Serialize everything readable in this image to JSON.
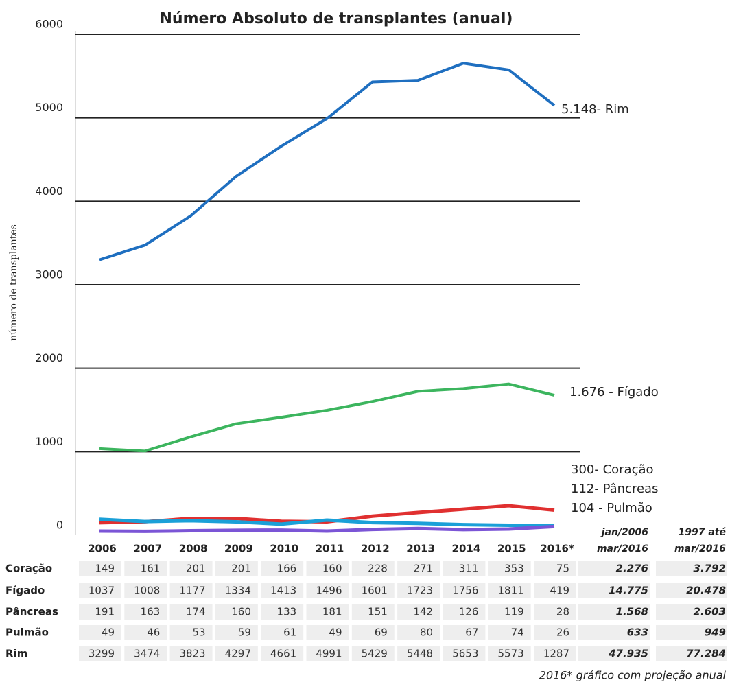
{
  "chart_data": {
    "type": "line",
    "title": "Número Absoluto de transplantes (anual)",
    "y_label": "número de transplantes",
    "categories": [
      "2006",
      "2007",
      "2008",
      "2009",
      "2010",
      "2011",
      "2012",
      "2013",
      "2014",
      "2015",
      "2016*"
    ],
    "ylim": [
      0,
      6000
    ],
    "yticks": [
      0,
      1000,
      2000,
      3000,
      4000,
      5000,
      6000
    ],
    "grid": true,
    "series": [
      {
        "name": "Rim",
        "color": "#1f6fc0",
        "label_color": "#2e2e7a",
        "end_label": "5.148- Rim",
        "values": [
          3299,
          3474,
          3823,
          4297,
          4661,
          4991,
          5429,
          5448,
          5653,
          5573,
          5148
        ]
      },
      {
        "name": "Fígado",
        "color": "#3cb55e",
        "label_color": "#3cb55e",
        "end_label": "1.676 - Fígado",
        "values": [
          1037,
          1008,
          1177,
          1334,
          1413,
          1496,
          1601,
          1723,
          1756,
          1811,
          1676
        ]
      },
      {
        "name": "Coração",
        "color": "#e03030",
        "label_color": "#e02020",
        "end_label": "300- Coração",
        "values": [
          149,
          161,
          201,
          201,
          166,
          160,
          228,
          271,
          311,
          353,
          300
        ]
      },
      {
        "name": "Pâncreas",
        "color": "#1aa0d8",
        "label_color": "#1a90c8",
        "end_label": "112- Pâncreas",
        "values": [
          191,
          163,
          174,
          160,
          133,
          181,
          151,
          142,
          126,
          119,
          112
        ]
      },
      {
        "name": "Pulmão",
        "color": "#7b55d6",
        "label_color": "#7b55d6",
        "end_label": "104 - Pulmão",
        "values": [
          49,
          46,
          53,
          59,
          61,
          49,
          69,
          80,
          67,
          74,
          104
        ]
      }
    ],
    "footnote": "2016* gráfico com projeção anual"
  },
  "table": {
    "total_headers": [
      [
        "jan/2006",
        "mar/2016"
      ],
      [
        "1997 até",
        "mar/2016"
      ]
    ],
    "rows": [
      {
        "label": "Coração",
        "values": [
          149,
          161,
          201,
          201,
          166,
          160,
          228,
          271,
          311,
          353,
          75
        ],
        "totals": [
          "2.276",
          "3.792"
        ]
      },
      {
        "label": "Fígado",
        "values": [
          1037,
          1008,
          1177,
          1334,
          1413,
          1496,
          1601,
          1723,
          1756,
          1811,
          419
        ],
        "totals": [
          "14.775",
          "20.478"
        ]
      },
      {
        "label": "Pâncreas",
        "values": [
          191,
          163,
          174,
          160,
          133,
          181,
          151,
          142,
          126,
          119,
          28
        ],
        "totals": [
          "1.568",
          "2.603"
        ]
      },
      {
        "label": "Pulmão",
        "values": [
          49,
          46,
          53,
          59,
          61,
          49,
          69,
          80,
          67,
          74,
          26
        ],
        "totals": [
          "633",
          "949"
        ]
      },
      {
        "label": "Rim",
        "values": [
          3299,
          3474,
          3823,
          4297,
          4661,
          4991,
          5429,
          5448,
          5653,
          5573,
          1287
        ],
        "totals": [
          "47.935",
          "77.284"
        ]
      }
    ]
  }
}
